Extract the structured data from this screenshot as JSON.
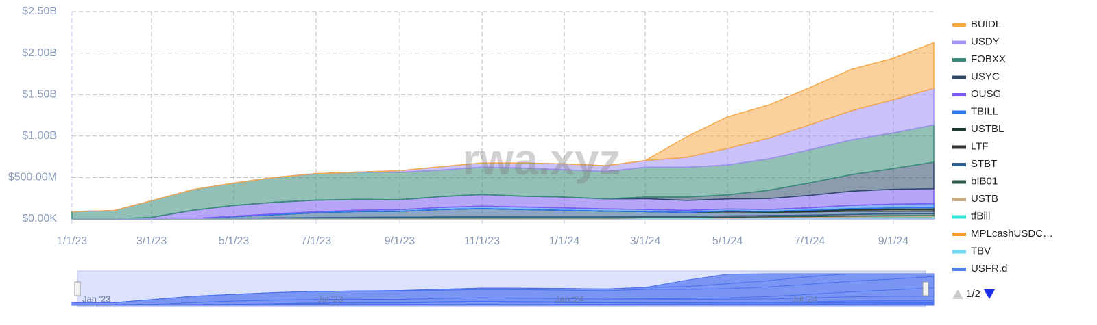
{
  "chart_data": {
    "type": "stacked_area",
    "x": [
      "1/1/23",
      "2/1/23",
      "3/1/23",
      "4/1/23",
      "5/1/23",
      "6/1/23",
      "7/1/23",
      "8/1/23",
      "9/1/23",
      "10/1/23",
      "11/1/23",
      "12/1/23",
      "1/1/24",
      "2/1/24",
      "3/1/24",
      "4/1/24",
      "5/1/24",
      "6/1/24",
      "7/1/24",
      "8/1/24",
      "9/1/24",
      "10/1/24"
    ],
    "xlim": [
      "1/1/23",
      "10/1/24"
    ],
    "xticks": [
      "1/1/23",
      "3/1/23",
      "5/1/23",
      "7/1/23",
      "9/1/23",
      "11/1/23",
      "1/1/24",
      "3/1/24",
      "5/1/24",
      "7/1/24",
      "9/1/24"
    ],
    "ylim": [
      0,
      2500000000
    ],
    "yticks": [
      {
        "value": 0,
        "label": "$0.00K"
      },
      {
        "value": 500000000,
        "label": "$500.00M"
      },
      {
        "value": 1000000000,
        "label": "$1.00B"
      },
      {
        "value": 1500000000,
        "label": "$1.50B"
      },
      {
        "value": 2000000000,
        "label": "$2.00B"
      },
      {
        "value": 2500000000,
        "label": "$2.50B"
      }
    ],
    "grid": true,
    "series": [
      {
        "name": "BUIDL",
        "color": "#f5a94a",
        "values": [
          0,
          0,
          0,
          0,
          0,
          0,
          0,
          0,
          0,
          0,
          0,
          0,
          0,
          0,
          0,
          250000000,
          380000000,
          400000000,
          450000000,
          500000000,
          500000000,
          550000000
        ]
      },
      {
        "name": "USDY",
        "color": "#a08ff5",
        "values": [
          0,
          0,
          0,
          0,
          0,
          0,
          0,
          0,
          20000000,
          40000000,
          50000000,
          60000000,
          70000000,
          70000000,
          80000000,
          120000000,
          200000000,
          250000000,
          300000000,
          350000000,
          400000000,
          440000000
        ]
      },
      {
        "name": "FOBXX",
        "color": "#3a8c7a",
        "values": [
          90000000,
          100000000,
          200000000,
          250000000,
          270000000,
          300000000,
          320000000,
          330000000,
          330000000,
          320000000,
          330000000,
          340000000,
          330000000,
          330000000,
          360000000,
          360000000,
          360000000,
          380000000,
          400000000,
          420000000,
          430000000,
          450000000
        ]
      },
      {
        "name": "USYC",
        "color": "#2e4a6b",
        "values": [
          0,
          0,
          0,
          0,
          0,
          0,
          0,
          0,
          0,
          0,
          0,
          0,
          0,
          0,
          20000000,
          40000000,
          50000000,
          100000000,
          150000000,
          200000000,
          250000000,
          320000000
        ]
      },
      {
        "name": "OUSG",
        "color": "#7b5cf0",
        "values": [
          0,
          0,
          20000000,
          100000000,
          130000000,
          140000000,
          140000000,
          130000000,
          120000000,
          130000000,
          140000000,
          130000000,
          130000000,
          120000000,
          130000000,
          120000000,
          120000000,
          130000000,
          150000000,
          170000000,
          180000000,
          180000000
        ]
      },
      {
        "name": "TBILL",
        "color": "#2a7bf0",
        "values": [
          0,
          0,
          0,
          0,
          5000000,
          10000000,
          12000000,
          15000000,
          20000000,
          25000000,
          30000000,
          30000000,
          30000000,
          28000000,
          25000000,
          25000000,
          25000000,
          25000000,
          30000000,
          40000000,
          45000000,
          50000000
        ]
      },
      {
        "name": "USTBL",
        "color": "#1f3b33",
        "values": [
          0,
          0,
          0,
          0,
          0,
          0,
          0,
          0,
          0,
          0,
          0,
          0,
          0,
          0,
          0,
          0,
          0,
          0,
          10000000,
          15000000,
          20000000,
          20000000
        ]
      },
      {
        "name": "LTF",
        "color": "#333333",
        "values": [
          0,
          0,
          0,
          0,
          0,
          0,
          0,
          0,
          0,
          0,
          0,
          0,
          0,
          0,
          0,
          0,
          10000000,
          10000000,
          10000000,
          15000000,
          20000000,
          20000000
        ]
      },
      {
        "name": "STBT",
        "color": "#2f5f8f",
        "values": [
          0,
          0,
          0,
          0,
          20000000,
          40000000,
          60000000,
          70000000,
          70000000,
          90000000,
          100000000,
          90000000,
          80000000,
          70000000,
          60000000,
          50000000,
          50000000,
          40000000,
          40000000,
          40000000,
          30000000,
          30000000
        ]
      },
      {
        "name": "bIB01",
        "color": "#2d5a48",
        "values": [
          0,
          0,
          0,
          5000000,
          8000000,
          10000000,
          12000000,
          14000000,
          15000000,
          16000000,
          16000000,
          15000000,
          15000000,
          15000000,
          15000000,
          15000000,
          15000000,
          15000000,
          15000000,
          20000000,
          25000000,
          25000000
        ]
      },
      {
        "name": "USTB",
        "color": "#c8a880",
        "values": [
          0,
          0,
          0,
          0,
          0,
          0,
          0,
          0,
          0,
          0,
          0,
          0,
          0,
          0,
          0,
          0,
          0,
          5000000,
          8000000,
          10000000,
          12000000,
          14000000
        ]
      },
      {
        "name": "tfBill",
        "color": "#2ee6d6",
        "values": [
          0,
          0,
          0,
          0,
          0,
          0,
          0,
          3000000,
          4000000,
          5000000,
          6000000,
          6000000,
          6000000,
          6000000,
          6000000,
          6000000,
          7000000,
          7000000,
          7000000,
          8000000,
          8000000,
          8000000
        ]
      },
      {
        "name": "MPLcashUSDC…",
        "color": "#f39c2a",
        "values": [
          0,
          0,
          0,
          0,
          0,
          2000000,
          3000000,
          3000000,
          3000000,
          3000000,
          3000000,
          3000000,
          3000000,
          3000000,
          3000000,
          3000000,
          3000000,
          0,
          0,
          0,
          0,
          0
        ]
      },
      {
        "name": "TBV",
        "color": "#6ed8f0",
        "values": [
          0,
          0,
          0,
          0,
          0,
          0,
          0,
          0,
          0,
          0,
          0,
          0,
          0,
          0,
          0,
          0,
          3000000,
          4000000,
          5000000,
          5000000,
          6000000,
          6000000
        ]
      },
      {
        "name": "USFR.d",
        "color": "#4f7ff0",
        "values": [
          0,
          0,
          0,
          0,
          0,
          0,
          0,
          0,
          0,
          0,
          0,
          0,
          0,
          0,
          5000000,
          5000000,
          8000000,
          10000000,
          10000000,
          12000000,
          12000000,
          12000000
        ]
      }
    ]
  },
  "watermark": "rwa.xyz",
  "legend_page": "1/2",
  "navigator": {
    "labels": [
      "Jan '23",
      "Jul '23",
      "Jan '24",
      "Jul '24"
    ]
  }
}
